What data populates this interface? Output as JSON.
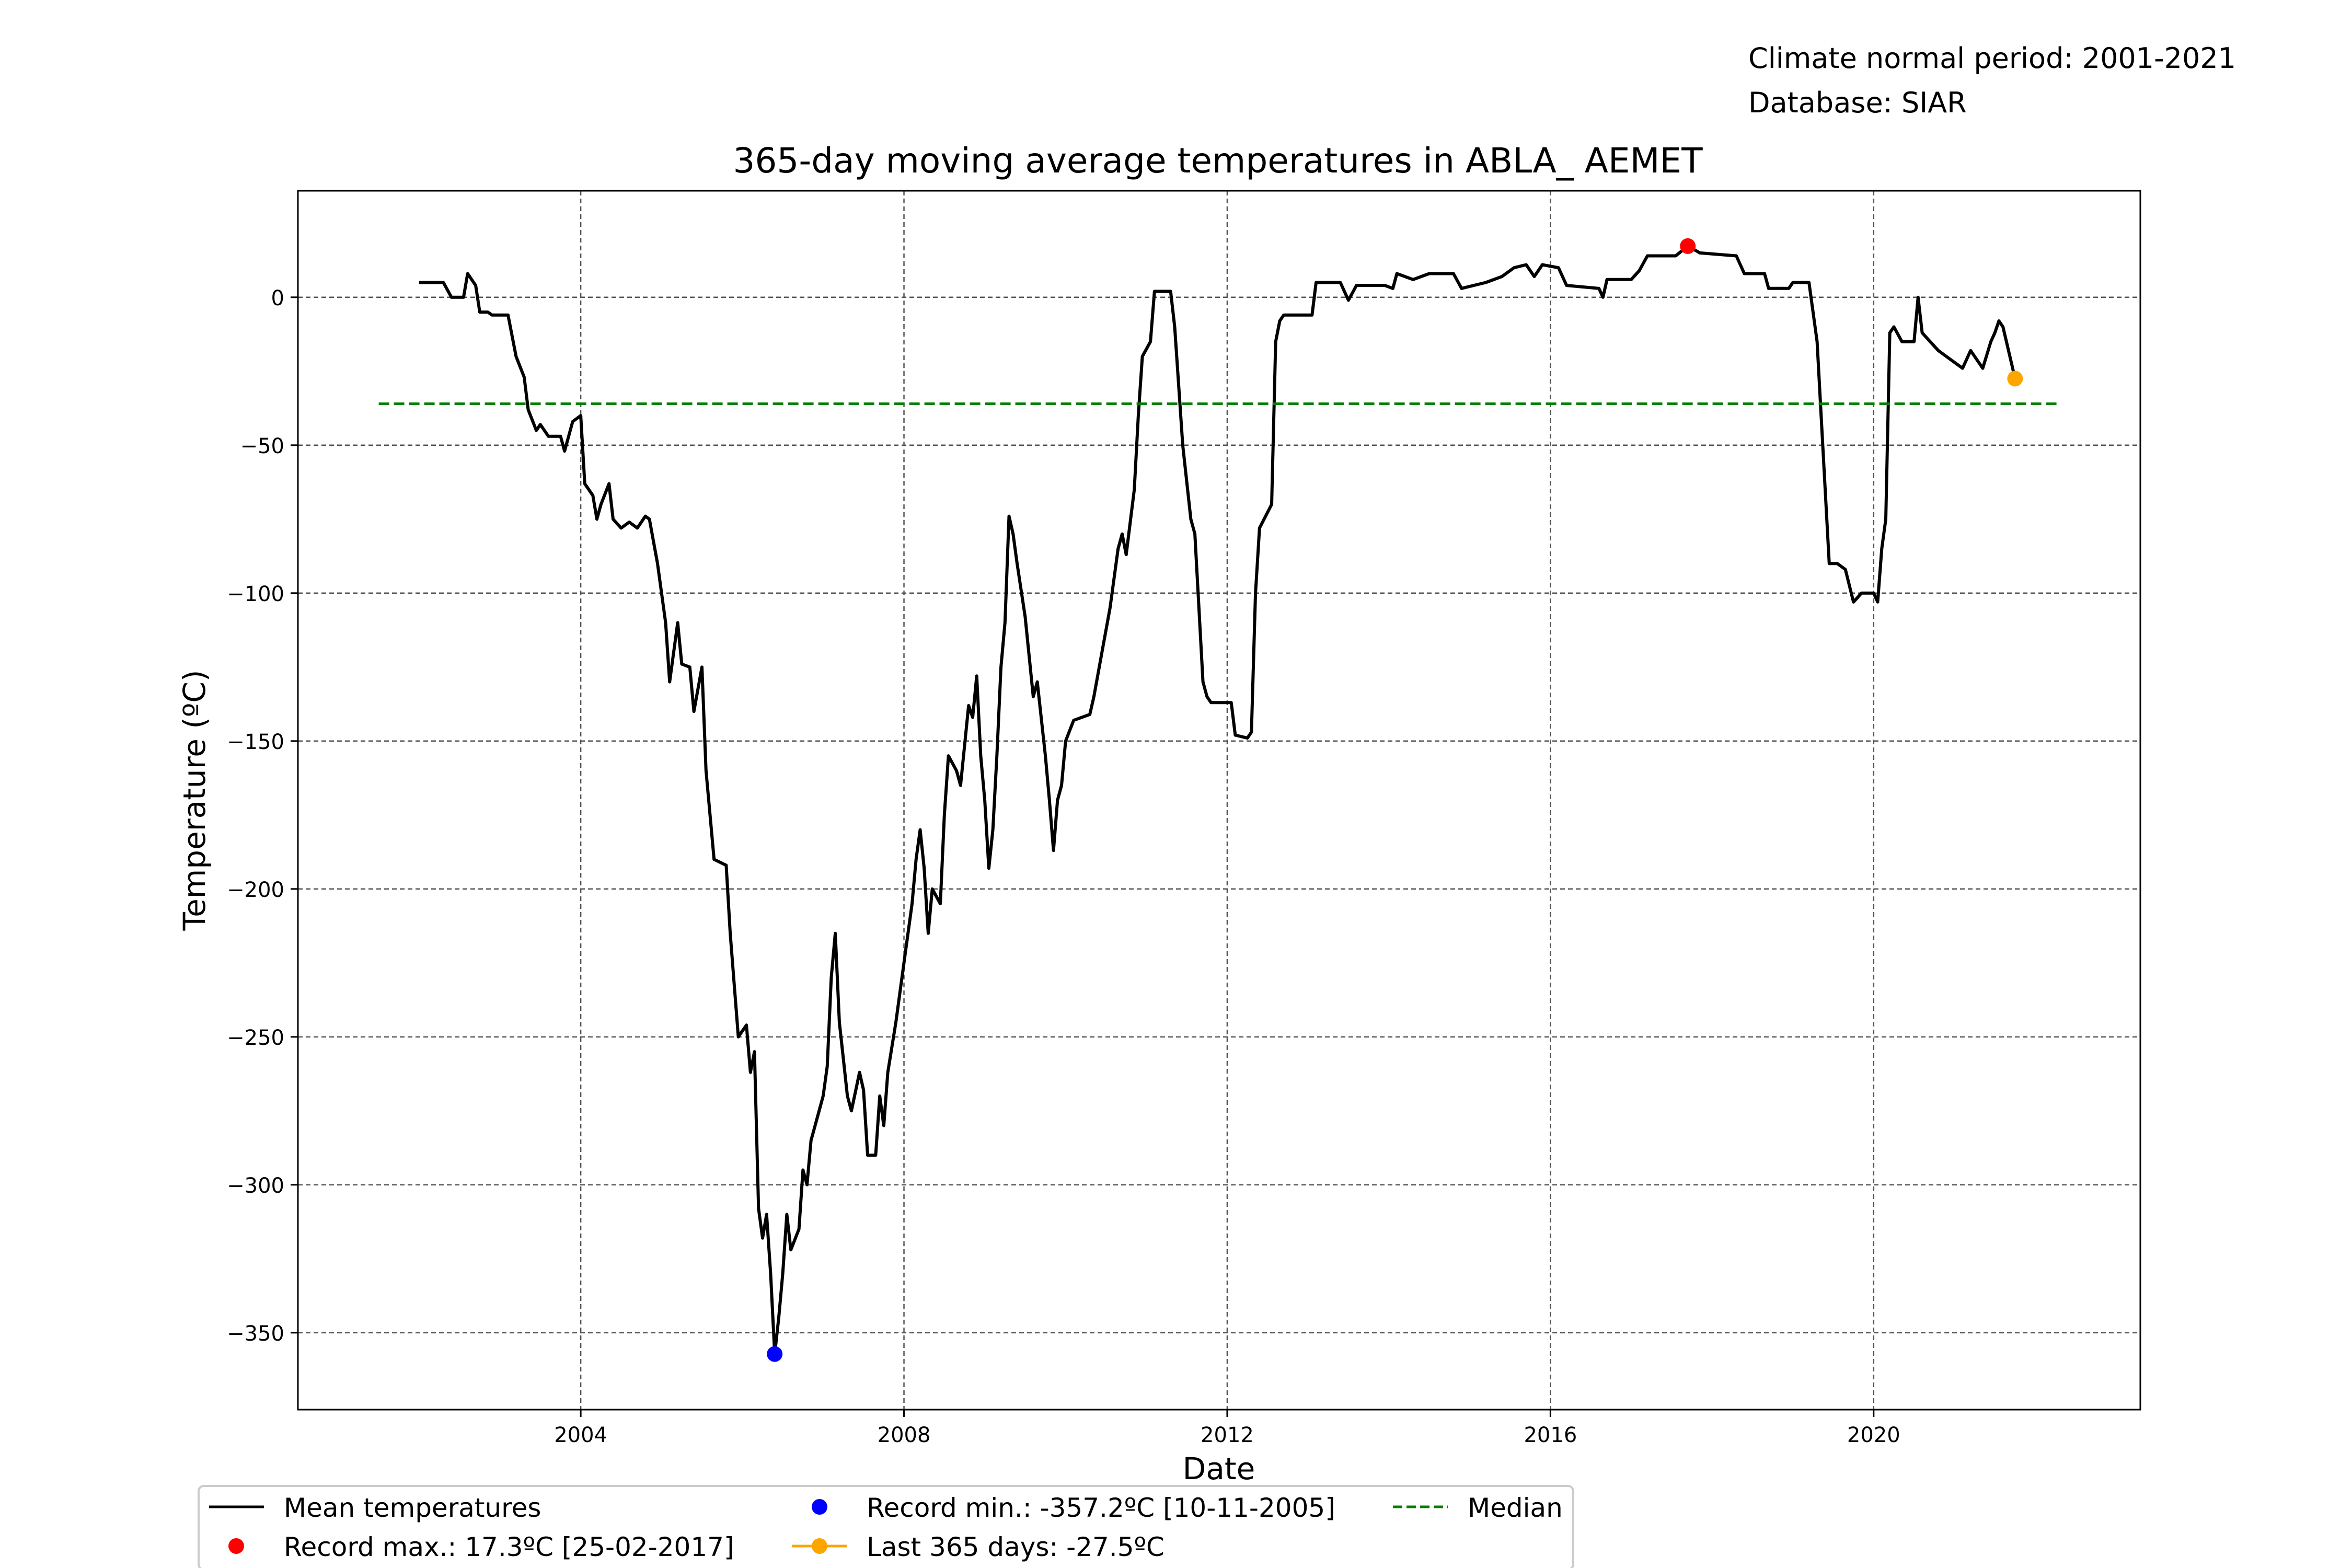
{
  "header": {
    "normal_period": "Climate normal period: 2001-2021",
    "database": "Database: SIAR"
  },
  "chart_data": {
    "type": "line",
    "title": "365-day moving average temperatures in ABLA_ AEMET",
    "xlabel": "Date",
    "ylabel": "Temperature (ºC)",
    "x_axis": "date (year)",
    "xlim": [
      2000.5,
      2023.3
    ],
    "ylim": [
      -376,
      36
    ],
    "x_ticks": [
      2004,
      2008,
      2012,
      2016,
      2020
    ],
    "x_tick_labels": [
      "2004",
      "2008",
      "2012",
      "2016",
      "2020"
    ],
    "y_ticks": [
      0,
      -50,
      -100,
      -150,
      -200,
      -250,
      -300,
      -350
    ],
    "y_tick_labels": [
      "0",
      "−50",
      "−100",
      "−150",
      "−200",
      "−250",
      "−300",
      "−350"
    ],
    "grid": true,
    "legend_position": "bottom",
    "series": [
      {
        "name": "Mean temperatures",
        "color": "#000000",
        "style": "solid",
        "points": [
          [
            2002.0,
            5
          ],
          [
            2002.3,
            5
          ],
          [
            2002.4,
            0
          ],
          [
            2002.55,
            0
          ],
          [
            2002.6,
            8
          ],
          [
            2002.7,
            4
          ],
          [
            2002.75,
            -5
          ],
          [
            2002.85,
            -5
          ],
          [
            2002.9,
            -6
          ],
          [
            2003.1,
            -6
          ],
          [
            2003.2,
            -20
          ],
          [
            2003.3,
            -27
          ],
          [
            2003.35,
            -38
          ],
          [
            2003.45,
            -45
          ],
          [
            2003.5,
            -43
          ],
          [
            2003.6,
            -47
          ],
          [
            2003.75,
            -47
          ],
          [
            2003.8,
            -52
          ],
          [
            2003.9,
            -42
          ],
          [
            2004.0,
            -40
          ],
          [
            2004.05,
            -63
          ],
          [
            2004.15,
            -67
          ],
          [
            2004.2,
            -75
          ],
          [
            2004.25,
            -70
          ],
          [
            2004.35,
            -63
          ],
          [
            2004.4,
            -75
          ],
          [
            2004.5,
            -78
          ],
          [
            2004.6,
            -76
          ],
          [
            2004.7,
            -78
          ],
          [
            2004.8,
            -74
          ],
          [
            2004.85,
            -75
          ],
          [
            2004.95,
            -90
          ],
          [
            2005.05,
            -110
          ],
          [
            2005.1,
            -130
          ],
          [
            2005.2,
            -110
          ],
          [
            2005.25,
            -124
          ],
          [
            2005.35,
            -125
          ],
          [
            2005.4,
            -140
          ],
          [
            2005.5,
            -125
          ],
          [
            2005.55,
            -160
          ],
          [
            2005.65,
            -190
          ],
          [
            2005.8,
            -192
          ],
          [
            2005.85,
            -215
          ],
          [
            2005.95,
            -250
          ],
          [
            2006.05,
            -246
          ],
          [
            2006.1,
            -262
          ],
          [
            2006.15,
            -255
          ],
          [
            2006.2,
            -308
          ],
          [
            2006.25,
            -318
          ],
          [
            2006.3,
            -310
          ],
          [
            2006.35,
            -330
          ],
          [
            2006.4,
            -357.2
          ],
          [
            2006.45,
            -345
          ],
          [
            2006.5,
            -330
          ],
          [
            2006.55,
            -310
          ],
          [
            2006.6,
            -322
          ],
          [
            2006.7,
            -315
          ],
          [
            2006.75,
            -295
          ],
          [
            2006.8,
            -300
          ],
          [
            2006.85,
            -285
          ],
          [
            2006.9,
            -280
          ],
          [
            2006.95,
            -275
          ],
          [
            2007.0,
            -270
          ],
          [
            2007.05,
            -260
          ],
          [
            2007.1,
            -230
          ],
          [
            2007.15,
            -215
          ],
          [
            2007.2,
            -245
          ],
          [
            2007.3,
            -270
          ],
          [
            2007.35,
            -275
          ],
          [
            2007.45,
            -262
          ],
          [
            2007.5,
            -268
          ],
          [
            2007.55,
            -290
          ],
          [
            2007.65,
            -290
          ],
          [
            2007.7,
            -270
          ],
          [
            2007.75,
            -280
          ],
          [
            2007.8,
            -262
          ],
          [
            2007.9,
            -245
          ],
          [
            2007.95,
            -235
          ],
          [
            2008.0,
            -225
          ],
          [
            2008.1,
            -205
          ],
          [
            2008.15,
            -190
          ],
          [
            2008.2,
            -180
          ],
          [
            2008.25,
            -193
          ],
          [
            2008.3,
            -215
          ],
          [
            2008.35,
            -200
          ],
          [
            2008.45,
            -205
          ],
          [
            2008.5,
            -175
          ],
          [
            2008.55,
            -155
          ],
          [
            2008.65,
            -160
          ],
          [
            2008.7,
            -165
          ],
          [
            2008.8,
            -138
          ],
          [
            2008.85,
            -142
          ],
          [
            2008.9,
            -128
          ],
          [
            2008.95,
            -155
          ],
          [
            2009.0,
            -170
          ],
          [
            2009.05,
            -193
          ],
          [
            2009.1,
            -180
          ],
          [
            2009.15,
            -155
          ],
          [
            2009.2,
            -125
          ],
          [
            2009.25,
            -110
          ],
          [
            2009.3,
            -74
          ],
          [
            2009.35,
            -80
          ],
          [
            2009.4,
            -90
          ],
          [
            2009.5,
            -108
          ],
          [
            2009.6,
            -135
          ],
          [
            2009.65,
            -130
          ],
          [
            2009.75,
            -155
          ],
          [
            2009.8,
            -170
          ],
          [
            2009.85,
            -187
          ],
          [
            2009.9,
            -170
          ],
          [
            2009.95,
            -165
          ],
          [
            2010.0,
            -150
          ],
          [
            2010.1,
            -143
          ],
          [
            2010.3,
            -141
          ],
          [
            2010.35,
            -135
          ],
          [
            2010.45,
            -120
          ],
          [
            2010.55,
            -105
          ],
          [
            2010.65,
            -85
          ],
          [
            2010.7,
            -80
          ],
          [
            2010.75,
            -87
          ],
          [
            2010.85,
            -65
          ],
          [
            2010.9,
            -40
          ],
          [
            2010.95,
            -20
          ],
          [
            2011.05,
            -15
          ],
          [
            2011.1,
            2
          ],
          [
            2011.3,
            2
          ],
          [
            2011.35,
            -10
          ],
          [
            2011.45,
            -50
          ],
          [
            2011.55,
            -75
          ],
          [
            2011.6,
            -80
          ],
          [
            2011.7,
            -130
          ],
          [
            2011.75,
            -135
          ],
          [
            2011.8,
            -137
          ],
          [
            2012.05,
            -137
          ],
          [
            2012.1,
            -148
          ],
          [
            2012.25,
            -149
          ],
          [
            2012.3,
            -147
          ],
          [
            2012.35,
            -100
          ],
          [
            2012.4,
            -78
          ],
          [
            2012.55,
            -70
          ],
          [
            2012.6,
            -15
          ],
          [
            2012.65,
            -8
          ],
          [
            2012.7,
            -6
          ],
          [
            2013.05,
            -6
          ],
          [
            2013.1,
            5
          ],
          [
            2013.4,
            5
          ],
          [
            2013.5,
            -1
          ],
          [
            2013.6,
            4
          ],
          [
            2013.95,
            4
          ],
          [
            2014.05,
            3
          ],
          [
            2014.1,
            8
          ],
          [
            2014.3,
            6
          ],
          [
            2014.5,
            8
          ],
          [
            2014.8,
            8
          ],
          [
            2014.9,
            3
          ],
          [
            2015.2,
            5
          ],
          [
            2015.4,
            7
          ],
          [
            2015.55,
            10
          ],
          [
            2015.7,
            11
          ],
          [
            2015.8,
            7
          ],
          [
            2015.9,
            11
          ],
          [
            2016.1,
            10
          ],
          [
            2016.2,
            4
          ],
          [
            2016.6,
            3
          ],
          [
            2016.65,
            0
          ],
          [
            2016.7,
            6
          ],
          [
            2017.0,
            6
          ],
          [
            2017.1,
            9
          ],
          [
            2017.2,
            14
          ],
          [
            2017.55,
            14
          ],
          [
            2017.7,
            17.3
          ],
          [
            2017.85,
            15
          ],
          [
            2018.3,
            14
          ],
          [
            2018.4,
            8
          ],
          [
            2018.65,
            8
          ],
          [
            2018.7,
            3
          ],
          [
            2018.95,
            3
          ],
          [
            2019.0,
            5
          ],
          [
            2019.2,
            5
          ],
          [
            2019.3,
            -15
          ],
          [
            2019.35,
            -40
          ],
          [
            2019.45,
            -90
          ],
          [
            2019.55,
            -90
          ],
          [
            2019.65,
            -92
          ],
          [
            2019.75,
            -103
          ],
          [
            2019.85,
            -100
          ],
          [
            2020.0,
            -100
          ],
          [
            2020.05,
            -103
          ],
          [
            2020.1,
            -85
          ],
          [
            2020.15,
            -75
          ],
          [
            2020.2,
            -12
          ],
          [
            2020.25,
            -10
          ],
          [
            2020.35,
            -15
          ],
          [
            2020.5,
            -15
          ],
          [
            2020.55,
            0
          ],
          [
            2020.6,
            -12
          ],
          [
            2020.7,
            -15
          ],
          [
            2020.8,
            -18
          ],
          [
            2020.9,
            -20
          ],
          [
            2021.0,
            -22
          ],
          [
            2021.1,
            -24
          ],
          [
            2021.2,
            -18
          ],
          [
            2021.35,
            -24
          ],
          [
            2021.45,
            -15
          ],
          [
            2021.5,
            -12
          ],
          [
            2021.55,
            -8
          ],
          [
            2021.6,
            -10
          ],
          [
            2021.75,
            -27.5
          ]
        ]
      },
      {
        "name": "Median",
        "color": "#008000",
        "style": "dashed",
        "points": [
          [
            2001.5,
            -36
          ],
          [
            2022.3,
            -36
          ]
        ]
      }
    ],
    "markers": [
      {
        "name": "Record min.: -357.2ºC [10-11-2005]",
        "x": 2006.4,
        "y": -357.2,
        "color": "#0000ff"
      },
      {
        "name": "Record max.: 17.3ºC [25-02-2017]",
        "x": 2017.7,
        "y": 17.3,
        "color": "#ff0000"
      },
      {
        "name": "Last 365 days: -27.5ºC",
        "x": 2021.75,
        "y": -27.5,
        "color": "#ffa500"
      }
    ],
    "legend": [
      {
        "key": "mean",
        "label": "Mean temperatures",
        "symbol": "line",
        "color": "#000000"
      },
      {
        "key": "max",
        "label": "Record max.: 17.3ºC [25-02-2017]",
        "symbol": "dot",
        "color": "#ff0000"
      },
      {
        "key": "min",
        "label": "Record min.: -357.2ºC [10-11-2005]",
        "symbol": "dot",
        "color": "#0000ff"
      },
      {
        "key": "last",
        "label": "Last 365 days: -27.5ºC",
        "symbol": "line-dot",
        "color": "#ffa500"
      },
      {
        "key": "median",
        "label": "Median",
        "symbol": "dashed",
        "color": "#008000"
      }
    ]
  }
}
